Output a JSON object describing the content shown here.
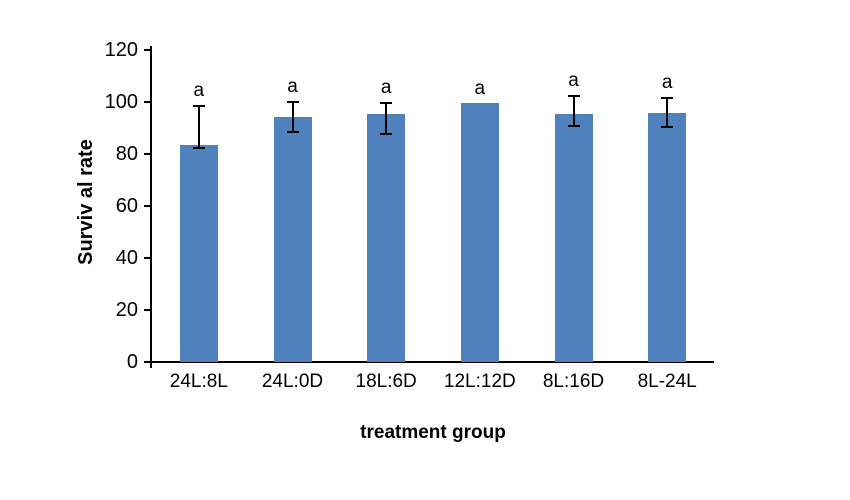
{
  "chart_data": {
    "type": "bar",
    "title": "",
    "xlabel": "treatment group",
    "ylabel": "Surviv al rate",
    "ylim": [
      0,
      120
    ],
    "yticks": [
      0,
      20,
      40,
      60,
      80,
      100,
      120
    ],
    "grid": false,
    "legend_position": "none",
    "bar_color": "#4F81BD",
    "error_bar_color": "#000000",
    "axis_color": "#000000",
    "categories": [
      "24L:8L",
      "24L:0D",
      "18L:6D",
      "12L:12D",
      "8L:16D",
      "8L-24L"
    ],
    "values": [
      83.4,
      94.2,
      95.2,
      99.8,
      95.5,
      95.8
    ],
    "error_low": [
      82,
      88,
      87.5,
      null,
      90.4,
      90
    ],
    "error_high": [
      99,
      100.3,
      100,
      null,
      102.6,
      102
    ],
    "point_labels": [
      "a",
      "a",
      "a",
      "a",
      "a",
      "a"
    ]
  }
}
